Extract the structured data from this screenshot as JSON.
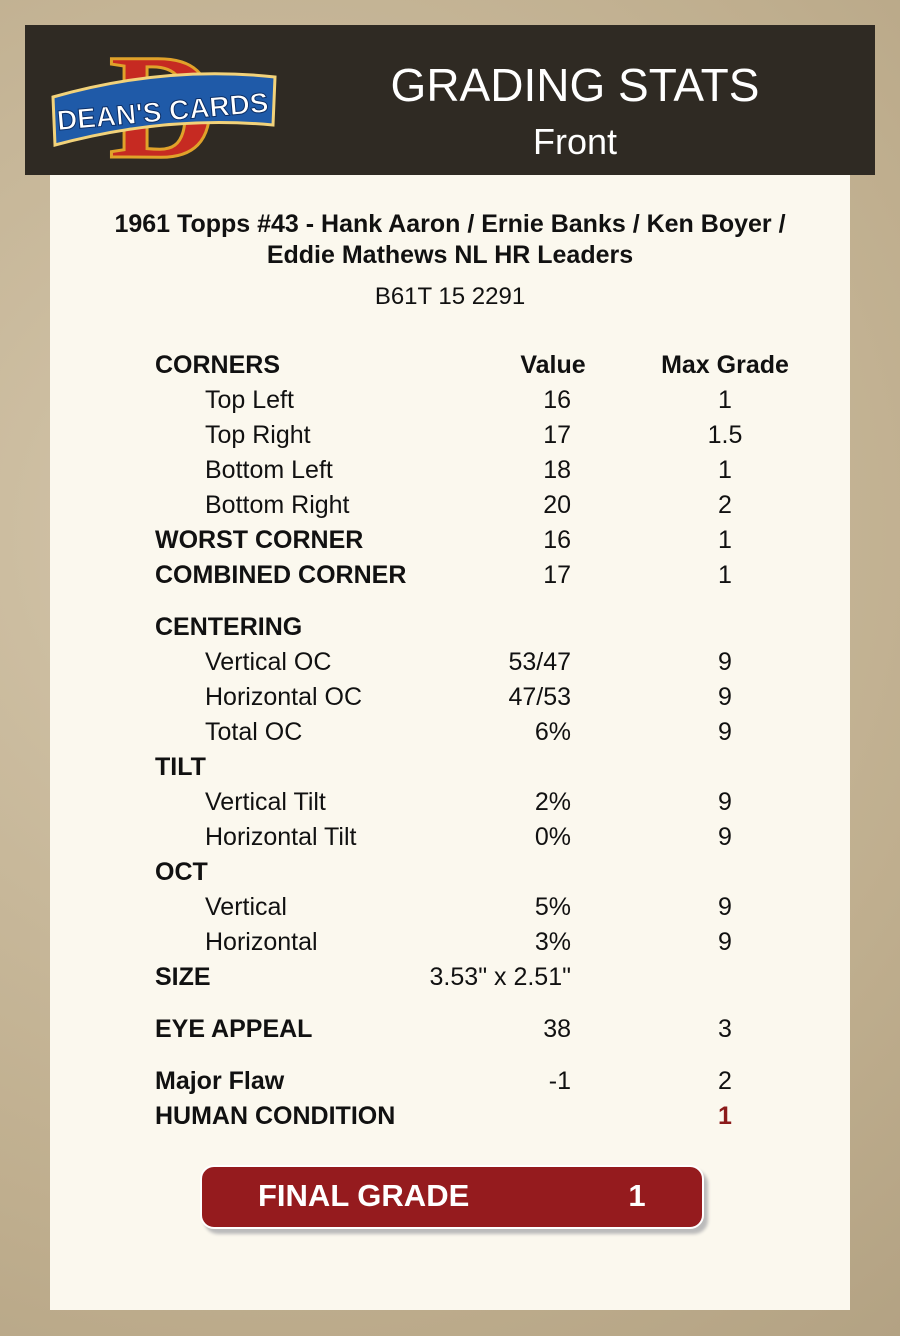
{
  "logo": {
    "letter": "D",
    "text": "DEAN'S CARDS"
  },
  "header": {
    "title": "GRADING STATS",
    "subtitle": "Front"
  },
  "card": {
    "title": "1961 Topps #43  -  Hank Aaron / Ernie Banks / Ken Boyer / Eddie Mathews NL HR Leaders",
    "id": "B61T 15 2291"
  },
  "columns": [
    "Value",
    "Max Grade"
  ],
  "rows": [
    {
      "label": "CORNERS"
    },
    {
      "label": "Top Left",
      "value": 16,
      "max": 1,
      "indent": true
    },
    {
      "label": "Top Right",
      "value": 17,
      "max": 1.5,
      "indent": true
    },
    {
      "label": "Bottom Left",
      "value": 18,
      "max": 1,
      "indent": true
    },
    {
      "label": "Bottom Right",
      "value": 20,
      "max": 2,
      "indent": true
    },
    {
      "label": "WORST CORNER",
      "value": 16,
      "max": 1
    },
    {
      "label": "COMBINED CORNER",
      "value": 17,
      "max": 1
    },
    {
      "label": "CENTERING"
    },
    {
      "label": "Vertical OC",
      "value": "53/47",
      "max": 9,
      "indent": true
    },
    {
      "label": "Horizontal OC",
      "value": "47/53",
      "max": 9,
      "indent": true
    },
    {
      "label": "Total OC",
      "value": "6%",
      "max": 9,
      "indent": true
    },
    {
      "label": "TILT"
    },
    {
      "label": "Vertical Tilt",
      "value": "2%",
      "max": 9,
      "indent": true
    },
    {
      "label": "Horizontal Tilt",
      "value": "0%",
      "max": 9,
      "indent": true
    },
    {
      "label": "OCT"
    },
    {
      "label": "Vertical",
      "value": "5%",
      "max": 9,
      "indent": true
    },
    {
      "label": "Horizontal",
      "value": "3%",
      "max": 9,
      "indent": true
    },
    {
      "label": "SIZE",
      "value": "3.53\" x 2.51\""
    },
    {
      "label": "EYE APPEAL",
      "value": 38,
      "max": 3
    },
    {
      "label": "Major Flaw",
      "value": -1,
      "max": 2
    },
    {
      "label": "HUMAN CONDITION",
      "max": 1,
      "max_color": "#8b1a1a"
    }
  ],
  "final": {
    "label": "FINAL GRADE",
    "value": 1
  }
}
